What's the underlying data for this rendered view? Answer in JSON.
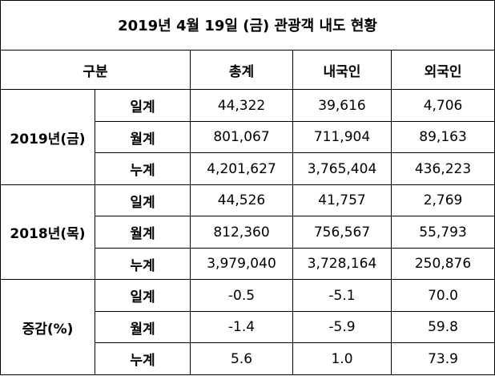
{
  "table": {
    "title": "2019년 4월 19일 (금) 관광객 내도 현황",
    "header": [
      "구분",
      "총계",
      "내국인",
      "외국인"
    ],
    "groups": [
      {
        "label": "2019년(금)",
        "rows": [
          {
            "label": "일계",
            "cells": [
              "44,322",
              "39,616",
              "4,706"
            ]
          },
          {
            "label": "월계",
            "cells": [
              "801,067",
              "711,904",
              "89,163"
            ]
          },
          {
            "label": "누계",
            "cells": [
              "4,201,627",
              "3,765,404",
              "436,223"
            ]
          }
        ]
      },
      {
        "label": "2018년(목)",
        "rows": [
          {
            "label": "일계",
            "cells": [
              "44,526",
              "41,757",
              "2,769"
            ]
          },
          {
            "label": "월계",
            "cells": [
              "812,360",
              "756,567",
              "55,793"
            ]
          },
          {
            "label": "누계",
            "cells": [
              "3,979,040",
              "3,728,164",
              "250,876"
            ]
          }
        ]
      },
      {
        "label": "증감(%)",
        "rows": [
          {
            "label": "일계",
            "cells": [
              "-0.5",
              "-5.1",
              "70.0"
            ]
          },
          {
            "label": "월계",
            "cells": [
              "-1.4",
              "-5.9",
              "59.8"
            ]
          },
          {
            "label": "누계",
            "cells": [
              "5.6",
              "1.0",
              "73.9"
            ]
          }
        ]
      }
    ]
  }
}
